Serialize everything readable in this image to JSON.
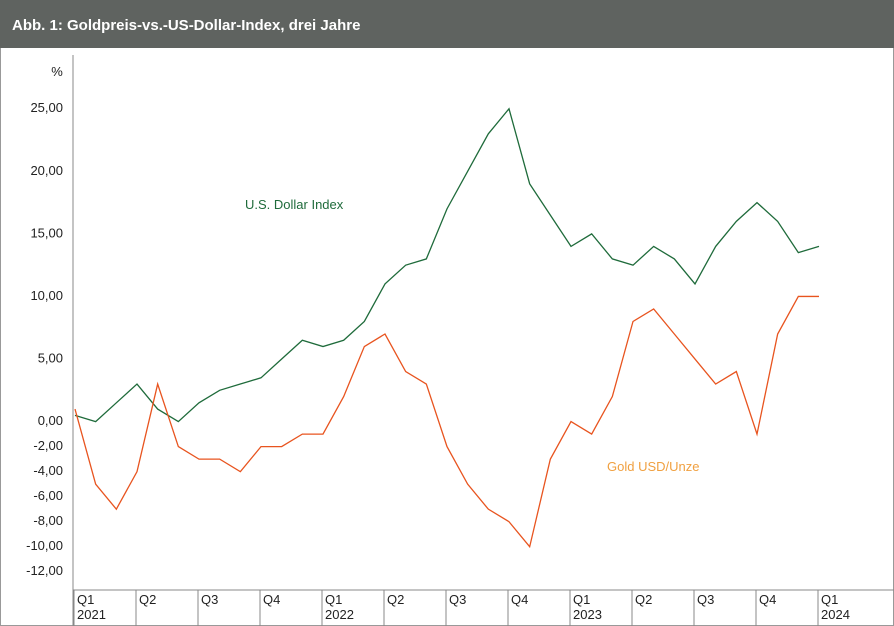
{
  "chart_data": {
    "type": "line",
    "title": "Abb. 1: Goldpreis-vs.-US-Dollar-Index, drei Jahre",
    "y_label": "%",
    "categories": [
      "Q1",
      null,
      null,
      "Q2",
      null,
      null,
      "Q3",
      null,
      null,
      "Q4",
      null,
      null,
      "Q1",
      null,
      null,
      "Q2",
      null,
      null,
      "Q3",
      null,
      null,
      "Q4",
      null,
      null,
      "Q1",
      null,
      null,
      "Q2",
      null,
      null,
      "Q3",
      null,
      null,
      "Q4",
      null,
      null,
      "Q1"
    ],
    "years": [
      "2021",
      null,
      null,
      null,
      null,
      null,
      null,
      null,
      null,
      null,
      null,
      null,
      "2022",
      null,
      null,
      null,
      null,
      null,
      null,
      null,
      null,
      null,
      null,
      null,
      "2023",
      null,
      null,
      null,
      null,
      null,
      null,
      null,
      null,
      null,
      null,
      null,
      "2024"
    ],
    "series": [
      {
        "name": "U.S. Dollar Index",
        "color": "#1f6b3b",
        "values": [
          0.5,
          0,
          1.5,
          3,
          1,
          0,
          1.5,
          2.5,
          3,
          3.5,
          5,
          6.5,
          6,
          6.5,
          8,
          11,
          12.5,
          13,
          17,
          20,
          23,
          25,
          19,
          16.5,
          14,
          15,
          13,
          12.5,
          14,
          13,
          11,
          14,
          16,
          17.5,
          16,
          13.5,
          14
        ]
      },
      {
        "name": "Gold USD/Unze",
        "color": "#e8541f",
        "label_color": "#f0a040",
        "values": [
          1,
          -5,
          -7,
          -4,
          3,
          -2,
          -3,
          -3,
          -4,
          -2,
          -2,
          -1,
          -1,
          2,
          6,
          7,
          4,
          3,
          -2,
          -5,
          -7,
          -8,
          -10,
          -3,
          0,
          -1,
          2,
          8,
          9,
          7,
          5,
          3,
          4,
          -1,
          7,
          10,
          10
        ]
      }
    ],
    "ylim": [
      -12.5,
      26.5
    ],
    "yticks": [
      {
        "value": 25,
        "label": "25,00"
      },
      {
        "value": 20,
        "label": "20,00"
      },
      {
        "value": 15,
        "label": "15,00"
      },
      {
        "value": 10,
        "label": "10,00"
      },
      {
        "value": 5,
        "label": "5,00"
      },
      {
        "value": 0,
        "label": "0,00"
      },
      {
        "value": -2,
        "label": "-2,00"
      },
      {
        "value": -4,
        "label": "-4,00"
      },
      {
        "value": -6,
        "label": "-6,00"
      },
      {
        "value": -8,
        "label": "-8,00"
      },
      {
        "value": -10,
        "label": "-10,00"
      },
      {
        "value": -12,
        "label": "-12,00"
      }
    ],
    "grid": false
  }
}
